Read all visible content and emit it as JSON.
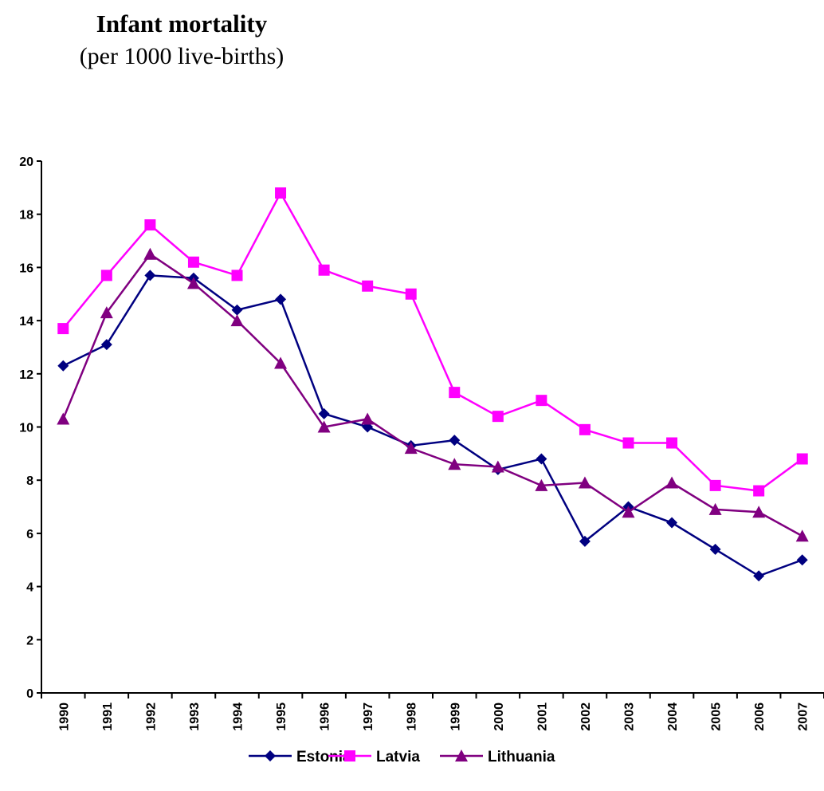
{
  "chart_data": {
    "type": "line",
    "title": "Infant mortality",
    "subtitle": "(per 1000 live-births)",
    "categories": [
      "1990",
      "1991",
      "1992",
      "1993",
      "1994",
      "1995",
      "1996",
      "1997",
      "1998",
      "1999",
      "2000",
      "2001",
      "2002",
      "2003",
      "2004",
      "2005",
      "2006",
      "2007"
    ],
    "series": [
      {
        "name": "Estonia",
        "color": "#000080",
        "marker": "diamond",
        "values": [
          12.3,
          13.1,
          15.7,
          15.6,
          14.4,
          14.8,
          10.5,
          10.0,
          9.3,
          9.5,
          8.4,
          8.8,
          5.7,
          7.0,
          6.4,
          5.4,
          4.4,
          5.0
        ]
      },
      {
        "name": "Latvia",
        "color": "#ff00ff",
        "marker": "square",
        "values": [
          13.7,
          15.7,
          17.6,
          16.2,
          15.7,
          18.8,
          15.9,
          15.3,
          15.0,
          11.3,
          10.4,
          11.0,
          9.9,
          9.4,
          9.4,
          7.8,
          7.6,
          8.8
        ]
      },
      {
        "name": "Lithuania",
        "color": "#800080",
        "marker": "triangle",
        "values": [
          10.3,
          14.3,
          16.5,
          15.4,
          14.0,
          12.4,
          10.0,
          10.3,
          9.2,
          8.6,
          8.5,
          7.8,
          7.9,
          6.8,
          7.9,
          6.9,
          6.8,
          5.9
        ]
      }
    ],
    "ylim": [
      0,
      20
    ],
    "yticks": [
      0,
      2,
      4,
      6,
      8,
      10,
      12,
      14,
      16,
      18,
      20
    ],
    "grid": false,
    "legend": "bottom"
  }
}
